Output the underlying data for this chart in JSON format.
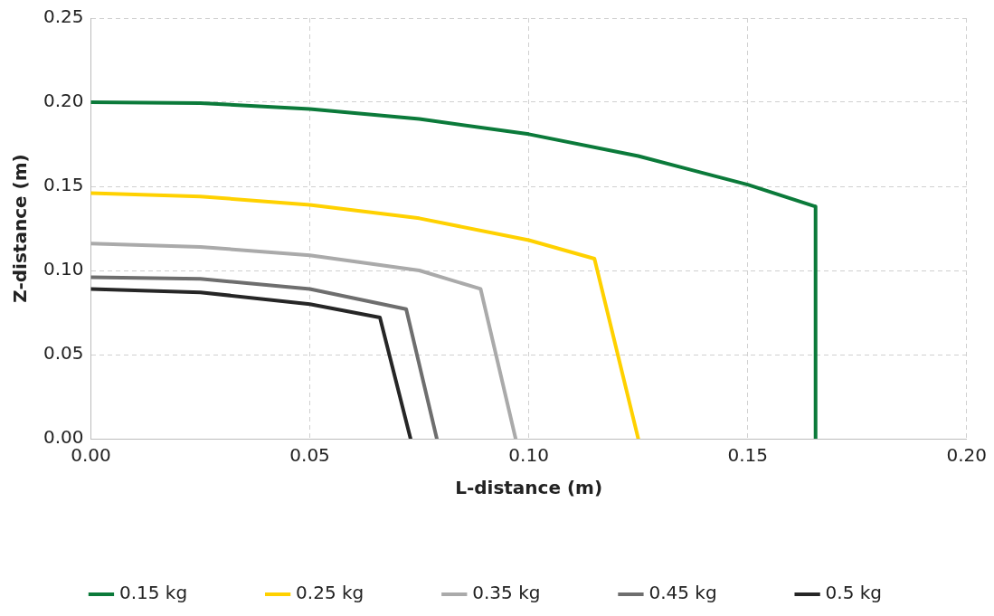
{
  "chart_data": {
    "type": "line",
    "xlabel": "L-distance (m)",
    "ylabel": "Z-distance (m)",
    "xlim": [
      0,
      0.2
    ],
    "ylim": [
      0,
      0.25
    ],
    "xticks": [
      {
        "value": 0,
        "label": "0.00"
      },
      {
        "value": 0.05,
        "label": "0.05"
      },
      {
        "value": 0.1,
        "label": "0.10"
      },
      {
        "value": 0.15,
        "label": "0.15"
      },
      {
        "value": 0.2,
        "label": "0.20"
      }
    ],
    "yticks": [
      {
        "value": 0,
        "label": "0.00"
      },
      {
        "value": 0.05,
        "label": "0.05"
      },
      {
        "value": 0.1,
        "label": "0.10"
      },
      {
        "value": 0.15,
        "label": "0.15"
      },
      {
        "value": 0.2,
        "label": "0.20"
      },
      {
        "value": 0.25,
        "label": "0.25"
      }
    ],
    "grid": true,
    "legend": "bottom",
    "marker": "none",
    "line_style": "solid",
    "series": [
      {
        "name": "0.15 kg",
        "color": "#0b7a3a",
        "x": [
          0,
          0.025,
          0.05,
          0.075,
          0.1,
          0.125,
          0.15,
          0.1655,
          0.1655
        ],
        "values": [
          0.2,
          0.1995,
          0.196,
          0.19,
          0.181,
          0.168,
          0.151,
          0.138,
          0
        ]
      },
      {
        "name": "0.25 kg",
        "color": "#ffd100",
        "x": [
          0,
          0.025,
          0.05,
          0.075,
          0.1,
          0.115,
          0.125
        ],
        "values": [
          0.146,
          0.144,
          0.139,
          0.131,
          0.118,
          0.107,
          0
        ]
      },
      {
        "name": "0.35 kg",
        "color": "#aaaaaa",
        "x": [
          0,
          0.025,
          0.05,
          0.075,
          0.089,
          0.097
        ],
        "values": [
          0.116,
          0.114,
          0.109,
          0.1,
          0.089,
          0
        ]
      },
      {
        "name": "0.45 kg",
        "color": "#6e6e6e",
        "x": [
          0,
          0.025,
          0.05,
          0.072,
          0.079
        ],
        "values": [
          0.096,
          0.095,
          0.089,
          0.077,
          0
        ]
      },
      {
        "name": "0.5 kg",
        "color": "#262626",
        "x": [
          0,
          0.025,
          0.05,
          0.066,
          0.073
        ],
        "values": [
          0.089,
          0.087,
          0.08,
          0.072,
          0
        ]
      }
    ]
  }
}
